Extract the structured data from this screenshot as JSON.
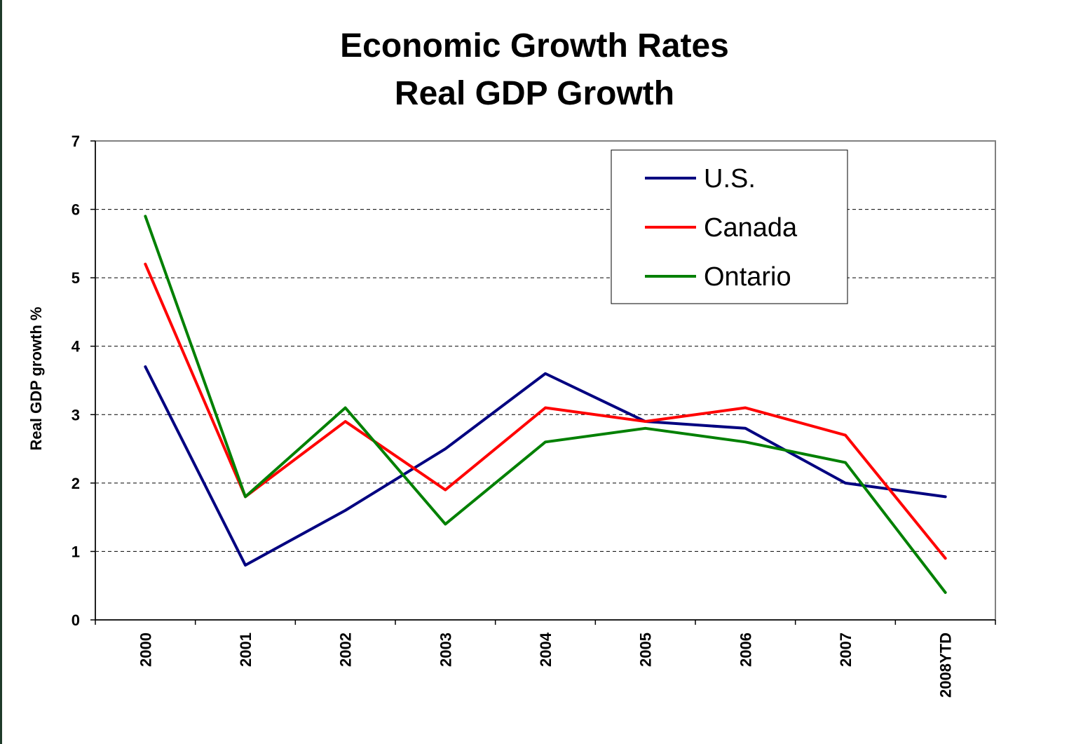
{
  "chart_data": {
    "type": "line",
    "title": "Economic Growth Rates",
    "subtitle": "Real GDP Growth",
    "xlabel": "",
    "ylabel": "Real GDP growth %",
    "categories": [
      "2000",
      "2001",
      "2002",
      "2003",
      "2004",
      "2005",
      "2006",
      "2007",
      "2008YTD"
    ],
    "ylim": [
      0,
      7
    ],
    "yticks": [
      0,
      1,
      2,
      3,
      4,
      5,
      6,
      7
    ],
    "grid": "horizontal dashed",
    "legend_position": "top-right",
    "series": [
      {
        "name": "U.S.",
        "color": "#000080",
        "values": [
          3.7,
          0.8,
          1.6,
          2.5,
          3.6,
          2.9,
          2.8,
          2.0,
          1.8
        ]
      },
      {
        "name": "Canada",
        "color": "#ff0000",
        "values": [
          5.2,
          1.8,
          2.9,
          1.9,
          3.1,
          2.9,
          3.1,
          2.7,
          0.9
        ]
      },
      {
        "name": "Ontario",
        "color": "#008000",
        "values": [
          5.9,
          1.8,
          3.1,
          1.4,
          2.6,
          2.8,
          2.6,
          2.3,
          0.4
        ]
      }
    ]
  }
}
